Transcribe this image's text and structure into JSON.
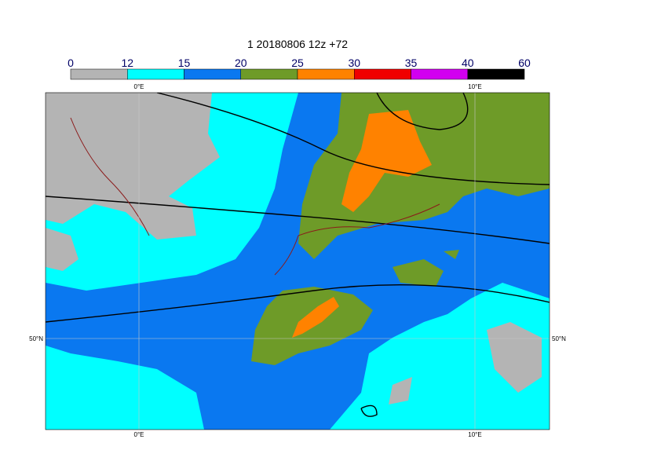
{
  "title": "1 20180806 12z +72",
  "colorbar": {
    "ticks": [
      0,
      12,
      15,
      20,
      25,
      30,
      35,
      40,
      60
    ],
    "colors": [
      "#b4b4b4",
      "#00ffff",
      "#0a78f0",
      "#6e9b28",
      "#ff8200",
      "#f00000",
      "#d200f0",
      "#000000"
    ]
  },
  "graticule": {
    "lon_labels": [
      "0°E",
      "10°E"
    ],
    "lat_labels": [
      "50°N"
    ]
  }
}
